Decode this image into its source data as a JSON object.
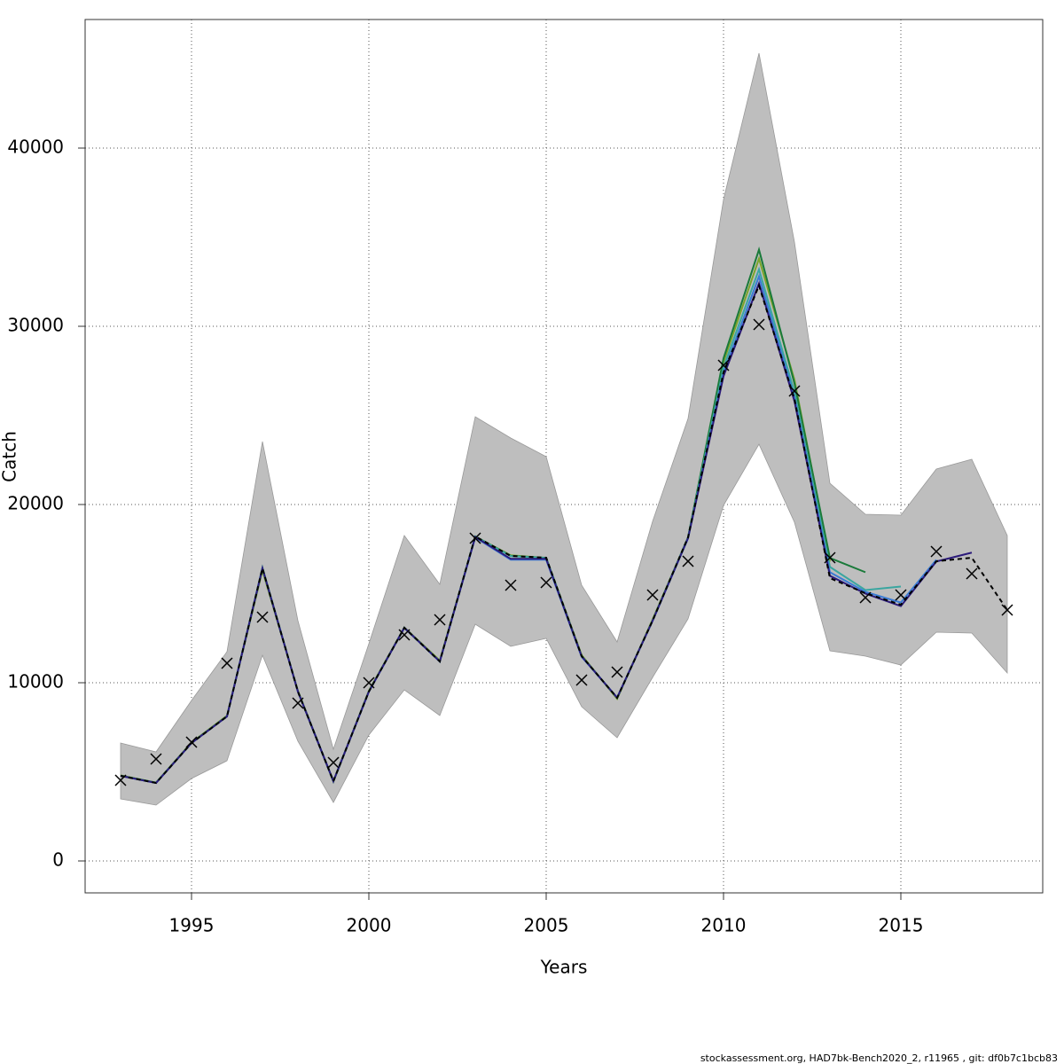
{
  "chart_data": {
    "type": "line",
    "xlabel": "Years",
    "ylabel": "Catch",
    "footer": "stockassessment.org, HAD7bk-Bench2020_2, r11965 , git: df0b7c1bcb83",
    "x": [
      1993,
      1994,
      1995,
      1996,
      1997,
      1998,
      1999,
      2000,
      2001,
      2002,
      2003,
      2004,
      2005,
      2006,
      2007,
      2008,
      2009,
      2010,
      2011,
      2012,
      2013,
      2014,
      2015,
      2016,
      2017,
      2018
    ],
    "band_color": "#bebebe",
    "band_upper": [
      6617,
      6119,
      9005,
      11741,
      23532,
      13483,
      6269,
      12189,
      18259,
      15522,
      24925,
      23731,
      22687,
      15473,
      12289,
      19055,
      24826,
      37114,
      45323,
      34726,
      21194,
      19453,
      19403,
      21990,
      22537,
      18259
    ],
    "band_lower": [
      3483,
      3134,
      4627,
      5622,
      11542,
      6716,
      3284,
      7065,
      9602,
      8159,
      13284,
      12040,
      12488,
      8657,
      6915,
      10299,
      13582,
      19950,
      23383,
      19005,
      11791,
      11493,
      10995,
      12836,
      12786,
      10547
    ],
    "series": [
      {
        "color": "#7aa52a",
        "values": [
          4800,
          4400,
          6650,
          8150,
          16300,
          9550,
          4450,
          9550,
          13100,
          11250,
          18200,
          17150,
          17000,
          11550,
          9100,
          13550,
          18150,
          28000,
          33800,
          27000,
          16800,
          null,
          null,
          null,
          null,
          null
        ]
      },
      {
        "color": "#1a7a3a",
        "values": [
          4790,
          4390,
          6630,
          8120,
          16450,
          9520,
          4470,
          9520,
          13090,
          11200,
          18210,
          17120,
          17010,
          11500,
          9150,
          13500,
          18160,
          28200,
          34300,
          26800,
          17000,
          16200,
          null,
          null,
          null,
          null
        ]
      },
      {
        "color": "#3aa6a0",
        "values": [
          4780,
          4380,
          6620,
          8110,
          16420,
          9500,
          4480,
          9500,
          13080,
          11190,
          18200,
          17100,
          17000,
          11490,
          9160,
          13480,
          18150,
          27700,
          33200,
          26300,
          16500,
          15200,
          15400,
          null,
          null,
          null
        ]
      },
      {
        "color": "#3a7bd5",
        "values": [
          4776,
          4378,
          6617,
          8109,
          16418,
          9502,
          4478,
          9502,
          13085,
          11194,
          18150,
          16900,
          16900,
          11450,
          9170,
          13470,
          18100,
          27400,
          32800,
          26000,
          16200,
          15100,
          14500,
          16900,
          null,
          null
        ]
      },
      {
        "color": "#2b1a7a",
        "values": [
          4776,
          4378,
          6617,
          8109,
          16418,
          9502,
          4478,
          9502,
          13085,
          11194,
          18180,
          16950,
          16950,
          11480,
          9160,
          13480,
          18120,
          27200,
          32400,
          25800,
          16000,
          15000,
          14300,
          16800,
          17300,
          null
        ]
      },
      {
        "color": "#000000",
        "dashed": true,
        "values": [
          4776,
          4378,
          6617,
          8109,
          16418,
          9502,
          4478,
          9502,
          13085,
          11194,
          18209,
          17114,
          17015,
          11493,
          9154,
          13483,
          18159,
          27413,
          32289,
          25920,
          15871,
          15025,
          14378,
          16816,
          17015,
          14080
        ]
      }
    ],
    "observations": [
      4527,
      5721,
      6667,
      11095,
      13682,
      8856,
      5522,
      10000,
      12687,
      13532,
      18109,
      15473,
      15622,
      10149,
      10597,
      14925,
      16816,
      27811,
      30100,
      26368,
      17015,
      14776,
      14925,
      17363,
      16119,
      14080
    ],
    "marker": "x",
    "xlim": [
      1992,
      2019
    ],
    "ylim": [
      -1791,
      47214
    ],
    "xticks": [
      1995,
      2000,
      2005,
      2010,
      2015
    ],
    "yticks": [
      0,
      10000,
      20000,
      30000,
      40000
    ],
    "grid": true
  }
}
